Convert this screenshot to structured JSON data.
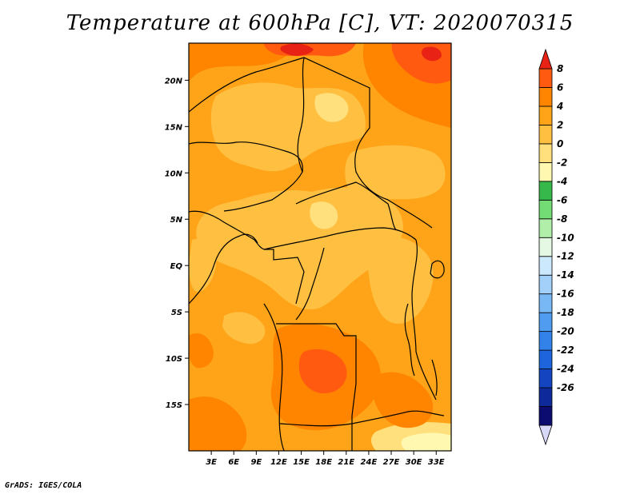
{
  "title": "Temperature at 600hPa [C], VT: 2020070315",
  "credit": "GrADS: IGES/COLA",
  "map": {
    "region": "Central Africa",
    "variable": "Temperature at 600hPa",
    "units": "C",
    "lon_range": [
      0,
      35
    ],
    "lat_range": [
      -20,
      24
    ],
    "x_ticks": [
      {
        "lon": 3,
        "label": "3E"
      },
      {
        "lon": 6,
        "label": "6E"
      },
      {
        "lon": 9,
        "label": "9E"
      },
      {
        "lon": 12,
        "label": "12E"
      },
      {
        "lon": 15,
        "label": "15E"
      },
      {
        "lon": 18,
        "label": "18E"
      },
      {
        "lon": 21,
        "label": "21E"
      },
      {
        "lon": 24,
        "label": "24E"
      },
      {
        "lon": 27,
        "label": "27E"
      },
      {
        "lon": 30,
        "label": "30E"
      },
      {
        "lon": 33,
        "label": "33E"
      }
    ],
    "y_ticks": [
      {
        "lat": 20,
        "label": "20N"
      },
      {
        "lat": 15,
        "label": "15N"
      },
      {
        "lat": 10,
        "label": "10N"
      },
      {
        "lat": 5,
        "label": "5N"
      },
      {
        "lat": 0,
        "label": "EQ"
      },
      {
        "lat": -5,
        "label": "5S"
      },
      {
        "lat": -10,
        "label": "10S"
      },
      {
        "lat": -15,
        "label": "15S"
      }
    ]
  },
  "colorbar": {
    "bins": [
      {
        "color": "#d8d8f8"
      },
      {
        "color": "#0c0c70"
      },
      {
        "color": "#0e2a9a"
      },
      {
        "color": "#1444c0"
      },
      {
        "color": "#1e64dc"
      },
      {
        "color": "#3282ea"
      },
      {
        "color": "#509cf0"
      },
      {
        "color": "#78b8f4"
      },
      {
        "color": "#a2d0f8"
      },
      {
        "color": "#cce8fc"
      },
      {
        "color": "#e4f8e4"
      },
      {
        "color": "#b0eeaa"
      },
      {
        "color": "#74dc74"
      },
      {
        "color": "#36b84a"
      },
      {
        "color": "#fff8b0"
      },
      {
        "color": "#ffe07c"
      },
      {
        "color": "#ffc042"
      },
      {
        "color": "#ffa418"
      },
      {
        "color": "#ff8400"
      },
      {
        "color": "#ff5a10"
      },
      {
        "color": "#e82214"
      }
    ],
    "labels": [
      "8",
      "6",
      "4",
      "2",
      "0",
      "-2",
      "-4",
      "-6",
      "-8",
      "-10",
      "-12",
      "-14",
      "-16",
      "-18",
      "-20",
      "-22",
      "-24",
      "-26"
    ]
  },
  "colors": {
    "band_0_2": "#ffc042",
    "band_2_4": "#ffa418",
    "band_4_6": "#ff8400",
    "band_6_8": "#ff5a10",
    "band_8_up": "#e82214",
    "band_neg2_0": "#ffe07c",
    "band_neg4_neg2": "#fff8b0",
    "borders": "#000000"
  }
}
